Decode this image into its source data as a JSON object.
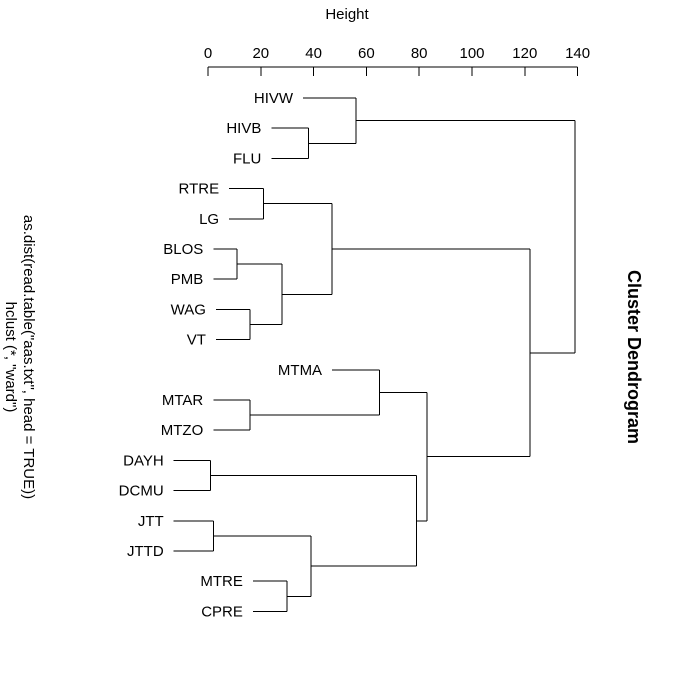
{
  "chart_data": {
    "type": "dendrogram",
    "title": "Cluster Dendrogram",
    "subtitle_lines": [
      "as.dist(read.table(\"aas.txt\", head = TRUE))",
      "hclust (*, \"ward\")"
    ],
    "height_axis_label": "Height",
    "height_range": [
      0,
      140
    ],
    "height_ticks": [
      0,
      20,
      40,
      60,
      80,
      100,
      120,
      140
    ],
    "leaves": [
      "HIVW",
      "HIVB",
      "FLU",
      "RTRE",
      "LG",
      "BLOS",
      "PMB",
      "WAG",
      "VT",
      "MTMA",
      "MTAR",
      "MTZO",
      "DAYH",
      "DCMU",
      "JTT",
      "JTTD",
      "MTRE",
      "CPRE"
    ],
    "merges": [
      {
        "a": "HIVB",
        "b": "FLU",
        "height": 38
      },
      {
        "a": "HIVW",
        "b": "HIVB+FLU",
        "height": 56
      },
      {
        "a": "RTRE",
        "b": "LG",
        "height": 21
      },
      {
        "a": "BLOS",
        "b": "PMB",
        "height": 11
      },
      {
        "a": "WAG",
        "b": "VT",
        "height": 16
      },
      {
        "a": "BLOS+PMB",
        "b": "WAG+VT",
        "height": 28
      },
      {
        "a": "RTRE+LG",
        "b": "BLOS+PMB+WAG+VT",
        "height": 47
      },
      {
        "a": "MTAR",
        "b": "MTZO",
        "height": 16
      },
      {
        "a": "MTMA",
        "b": "MTAR+MTZO",
        "height": 65
      },
      {
        "a": "DAYH",
        "b": "DCMU",
        "height": 1
      },
      {
        "a": "JTT",
        "b": "JTTD",
        "height": 2
      },
      {
        "a": "MTRE",
        "b": "CPRE",
        "height": 30
      },
      {
        "a": "JTT+JTTD",
        "b": "MTRE+CPRE",
        "height": 39
      },
      {
        "a": "DAYH+DCMU",
        "b": "JTT+JTTD+MTRE+CPRE",
        "height": 79
      },
      {
        "a": "MTMA+MTAR+MTZO",
        "b": "DAYH+DCMU+JTT+JTTD+MTRE+CPRE",
        "height": 83
      },
      {
        "a": "RTRE+LG+BLOS+PMB+WAG+VT",
        "b": "MTMA+MTAR+MTZO+DAYH+DCMU+JTT+JTTD+MTRE+CPRE",
        "height": 122
      },
      {
        "a": "HIVW+HIVB+FLU",
        "b": "RTRE+LG+BLOS+PMB+WAG+VT+MTMA+MTAR+MTZO+DAYH+DCMU+JTT+JTTD+MTRE+CPRE",
        "height": 139
      }
    ],
    "leaf_heights": {
      "HIVW": 36,
      "HIVB": 24,
      "FLU": 24,
      "RTRE": 8,
      "LG": 8,
      "BLOS": 2,
      "PMB": 2,
      "WAG": 3,
      "VT": 3,
      "MTMA": 47,
      "MTAR": 2,
      "MTZO": 2,
      "DAYH": -13,
      "DCMU": -13,
      "JTT": -13,
      "JTTD": -13,
      "MTRE": 17,
      "CPRE": 17
    }
  }
}
